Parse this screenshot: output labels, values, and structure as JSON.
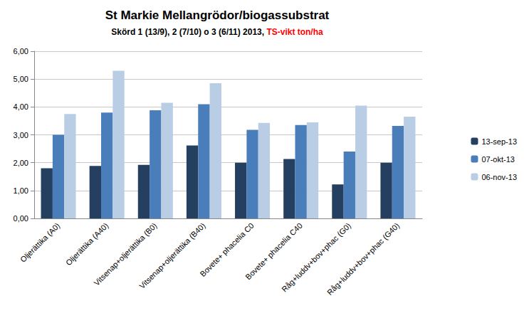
{
  "chart_data": {
    "type": "bar",
    "title": "St Markie Mellangrödor/biogassubstrat",
    "subtitle": "Skörd 1 (13/9), 2 (7/10) o 3 (6/11) 2013, TS-vikt ton/ha",
    "categories": [
      "Oljerättika (A0)",
      "Oljerättika (A40)",
      "Vitsenap+oljerättika (B0)",
      "Vitsenap+oljerättika (B40)",
      "Bovete+ phacelia C0",
      "Bovete+ phacelia C40",
      "Råg+luddv+bov+phac (G0)",
      "Råg+luddv+bov+phac (G40)"
    ],
    "series": [
      {
        "name": "13-sep-13",
        "color": "#243f60",
        "values": [
          1.8,
          1.88,
          1.92,
          2.62,
          2.0,
          2.13,
          1.22,
          2.0
        ]
      },
      {
        "name": "07-okt-13",
        "color": "#4a7ebb",
        "values": [
          3.0,
          3.8,
          3.88,
          4.1,
          3.18,
          3.35,
          2.4,
          3.32
        ]
      },
      {
        "name": "06-nov-13",
        "color": "#b9cde5",
        "values": [
          3.75,
          5.3,
          4.15,
          4.85,
          3.43,
          3.45,
          4.05,
          3.65
        ]
      }
    ],
    "ylim": [
      0,
      6
    ],
    "yticks": [
      {
        "value": 0,
        "label": "0,00"
      },
      {
        "value": 1,
        "label": "1,00"
      },
      {
        "value": 2,
        "label": "2,00"
      },
      {
        "value": 3,
        "label": "3,00"
      },
      {
        "value": 4,
        "label": "4,00"
      },
      {
        "value": 5,
        "label": "5,00"
      },
      {
        "value": 6,
        "label": "6,00"
      }
    ],
    "grid": true,
    "legend": "right"
  }
}
